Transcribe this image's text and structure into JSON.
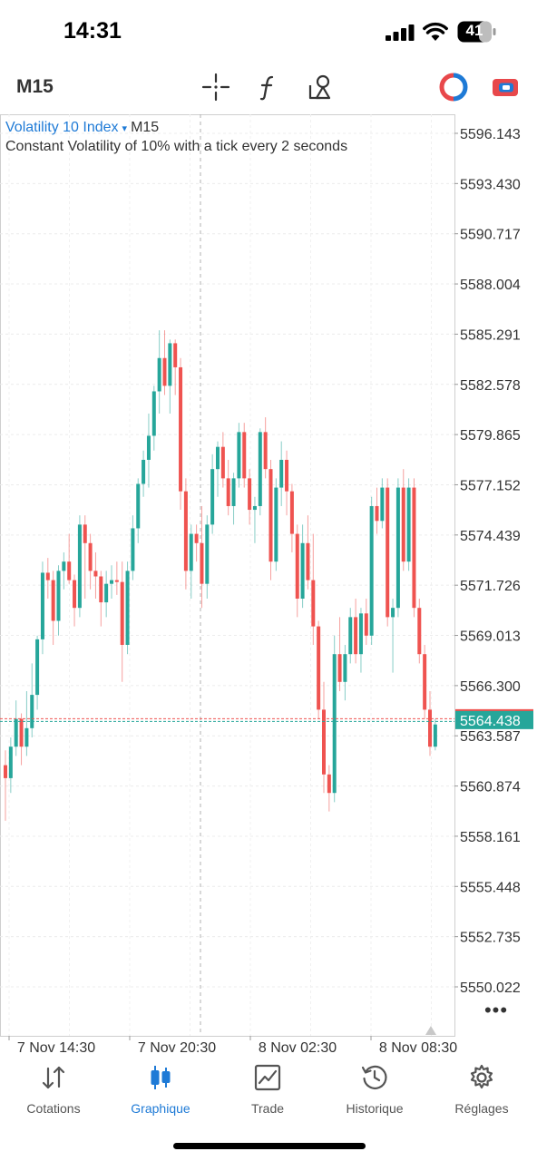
{
  "status_bar": {
    "time": "14:31",
    "battery": "41",
    "icons": [
      "signal-icon",
      "wifi-icon",
      "battery-icon"
    ]
  },
  "toolbar": {
    "timeframe": "M15",
    "icons": [
      "crosshair-icon",
      "indicators-icon",
      "objects-icon",
      "account-icon",
      "trade-toggle-icon"
    ],
    "accent_blue": "#1e7ad6",
    "accent_red": "#e8484b"
  },
  "chart": {
    "symbol": "Volatility 10 Index",
    "symbol_caret": "▾",
    "timeframe": "M15",
    "description": "Constant Volatility of 10% with a tick every 2 seconds",
    "current_price": "5564.438",
    "price_ticks": [
      "5596.143",
      "5593.430",
      "5590.717",
      "5588.004",
      "5585.291",
      "5582.578",
      "5579.865",
      "5577.152",
      "5574.439",
      "5571.726",
      "5569.013",
      "5566.300",
      "5563.587",
      "5560.874",
      "5558.161",
      "5555.448",
      "5552.735",
      "5550.022"
    ],
    "time_ticks": [
      "7 Nov 14:30",
      "7 Nov 20:30",
      "8 Nov 02:30",
      "8 Nov 08:30"
    ],
    "up_color": "#26a69a",
    "down_color": "#ef5350",
    "more_icon": "more-icon"
  },
  "chart_data": {
    "type": "candlestick",
    "y_axis_values": [
      5596.143,
      5593.43,
      5590.717,
      5588.004,
      5585.291,
      5582.578,
      5579.865,
      5577.152,
      5574.439,
      5571.726,
      5569.013,
      5566.3,
      5563.587,
      5560.874,
      5558.161,
      5555.448,
      5552.735,
      5550.022
    ],
    "ylim": [
      5548.8,
      5598.2
    ],
    "x_labels": [
      "7 Nov 14:30",
      "7 Nov 20:30",
      "8 Nov 02:30",
      "8 Nov 08:30"
    ],
    "current_price": 5564.438,
    "candles": [
      [
        5562.0,
        5562.8,
        5559.0,
        5561.3
      ],
      [
        5561.3,
        5563.5,
        5560.5,
        5563.0
      ],
      [
        5563.0,
        5565.5,
        5562.5,
        5564.5
      ],
      [
        5564.5,
        5564.8,
        5562.0,
        5563.0
      ],
      [
        5563.0,
        5566.0,
        5562.5,
        5564.0
      ],
      [
        5564.0,
        5567.5,
        5563.5,
        5565.8
      ],
      [
        5565.8,
        5569.0,
        5565.0,
        5568.8
      ],
      [
        5568.8,
        5573.0,
        5568.0,
        5572.4
      ],
      [
        5572.4,
        5573.2,
        5571.0,
        5572.0
      ],
      [
        5572.0,
        5572.5,
        5568.5,
        5569.8
      ],
      [
        5569.8,
        5572.8,
        5569.0,
        5572.5
      ],
      [
        5572.5,
        5573.5,
        5571.5,
        5573.0
      ],
      [
        5573.0,
        5574.5,
        5571.8,
        5572.0
      ],
      [
        5572.0,
        5572.3,
        5569.5,
        5570.5
      ],
      [
        5570.5,
        5575.5,
        5570.0,
        5575.0
      ],
      [
        5575.0,
        5575.5,
        5571.0,
        5574.0
      ],
      [
        5574.0,
        5574.5,
        5571.5,
        5572.5
      ],
      [
        5572.5,
        5573.5,
        5571.0,
        5572.2
      ],
      [
        5572.2,
        5572.5,
        5569.5,
        5570.8
      ],
      [
        5570.8,
        5572.5,
        5570.0,
        5571.8
      ],
      [
        5571.8,
        5572.8,
        5571.0,
        5572.0
      ],
      [
        5572.0,
        5573.0,
        5571.2,
        5571.9
      ],
      [
        5571.9,
        5573.0,
        5566.5,
        5568.5
      ],
      [
        5568.5,
        5573.0,
        5568.0,
        5572.5
      ],
      [
        5572.5,
        5575.5,
        5572.0,
        5574.8
      ],
      [
        5574.8,
        5577.5,
        5574.0,
        5577.2
      ],
      [
        5577.2,
        5579.0,
        5576.5,
        5578.5
      ],
      [
        5578.5,
        5581.0,
        5577.0,
        5579.8
      ],
      [
        5579.8,
        5582.5,
        5579.0,
        5582.2
      ],
      [
        5582.2,
        5585.5,
        5581.0,
        5584.0
      ],
      [
        5584.0,
        5585.5,
        5582.0,
        5582.5
      ],
      [
        5582.5,
        5585.0,
        5581.0,
        5584.8
      ],
      [
        5584.8,
        5585.0,
        5582.0,
        5583.5
      ],
      [
        5583.5,
        5584.0,
        5575.8,
        5576.8
      ],
      [
        5576.8,
        5577.5,
        5571.5,
        5572.5
      ],
      [
        5572.5,
        5575.0,
        5571.0,
        5574.5
      ],
      [
        5574.5,
        5575.0,
        5573.0,
        5574.0
      ],
      [
        5574.0,
        5576.0,
        5570.5,
        5571.8
      ],
      [
        5571.8,
        5575.5,
        5571.0,
        5575.0
      ],
      [
        5575.0,
        5578.8,
        5574.5,
        5578.0
      ],
      [
        5578.0,
        5579.5,
        5576.5,
        5579.2
      ],
      [
        5579.2,
        5580.0,
        5577.0,
        5577.5
      ],
      [
        5577.5,
        5578.5,
        5575.5,
        5576.0
      ],
      [
        5576.0,
        5577.8,
        5575.0,
        5577.5
      ],
      [
        5577.5,
        5580.5,
        5577.0,
        5580.0
      ],
      [
        5580.0,
        5580.5,
        5577.0,
        5577.5
      ],
      [
        5577.5,
        5578.0,
        5575.0,
        5575.8
      ],
      [
        5575.8,
        5576.5,
        5574.0,
        5576.0
      ],
      [
        5576.0,
        5580.2,
        5575.5,
        5580.0
      ],
      [
        5580.0,
        5580.8,
        5577.5,
        5578.0
      ],
      [
        5578.0,
        5578.5,
        5572.0,
        5573.0
      ],
      [
        5573.0,
        5577.5,
        5572.5,
        5577.0
      ],
      [
        5577.0,
        5579.5,
        5576.0,
        5578.5
      ],
      [
        5578.5,
        5579.0,
        5575.5,
        5576.8
      ],
      [
        5576.8,
        5577.2,
        5573.5,
        5574.5
      ],
      [
        5574.5,
        5575.0,
        5570.0,
        5571.0
      ],
      [
        5571.0,
        5575.0,
        5570.5,
        5574.0
      ],
      [
        5574.0,
        5575.5,
        5571.5,
        5572.0
      ],
      [
        5572.0,
        5574.5,
        5568.5,
        5569.5
      ],
      [
        5569.5,
        5569.8,
        5564.5,
        5565.0
      ],
      [
        5565.0,
        5566.5,
        5560.5,
        5561.5
      ],
      [
        5561.5,
        5562.0,
        5559.5,
        5560.5
      ],
      [
        5560.5,
        5569.0,
        5560.0,
        5568.0
      ],
      [
        5568.0,
        5570.0,
        5566.0,
        5566.5
      ],
      [
        5566.5,
        5568.5,
        5565.5,
        5568.0
      ],
      [
        5568.0,
        5570.5,
        5567.5,
        5570.0
      ],
      [
        5570.0,
        5571.0,
        5567.5,
        5568.0
      ],
      [
        5568.0,
        5570.5,
        5567.0,
        5570.2
      ],
      [
        5570.2,
        5571.0,
        5568.5,
        5569.0
      ],
      [
        5569.0,
        5576.5,
        5568.5,
        5576.0
      ],
      [
        5576.0,
        5577.0,
        5574.5,
        5575.2
      ],
      [
        5575.2,
        5577.5,
        5574.8,
        5577.0
      ],
      [
        5577.0,
        5577.5,
        5569.5,
        5570.0
      ],
      [
        5570.0,
        5571.0,
        5567.0,
        5570.5
      ],
      [
        5570.5,
        5577.5,
        5570.0,
        5577.0
      ],
      [
        5577.0,
        5578.0,
        5572.5,
        5573.0
      ],
      [
        5573.0,
        5577.5,
        5572.5,
        5577.0
      ],
      [
        5577.0,
        5577.5,
        5570.0,
        5570.5
      ],
      [
        5570.5,
        5571.0,
        5567.5,
        5568.0
      ],
      [
        5568.0,
        5568.5,
        5564.5,
        5565.0
      ],
      [
        5565.0,
        5566.0,
        5562.5,
        5563.0
      ],
      [
        5563.0,
        5564.5,
        5562.8,
        5564.2
      ]
    ]
  },
  "tabs": [
    {
      "label": "Cotations",
      "icon": "arrows-updown-icon",
      "active": false
    },
    {
      "label": "Graphique",
      "icon": "candles-icon",
      "active": true
    },
    {
      "label": "Trade",
      "icon": "trend-chart-icon",
      "active": false
    },
    {
      "label": "Historique",
      "icon": "history-clock-icon",
      "active": false
    },
    {
      "label": "Réglages",
      "icon": "gear-icon",
      "active": false
    }
  ]
}
